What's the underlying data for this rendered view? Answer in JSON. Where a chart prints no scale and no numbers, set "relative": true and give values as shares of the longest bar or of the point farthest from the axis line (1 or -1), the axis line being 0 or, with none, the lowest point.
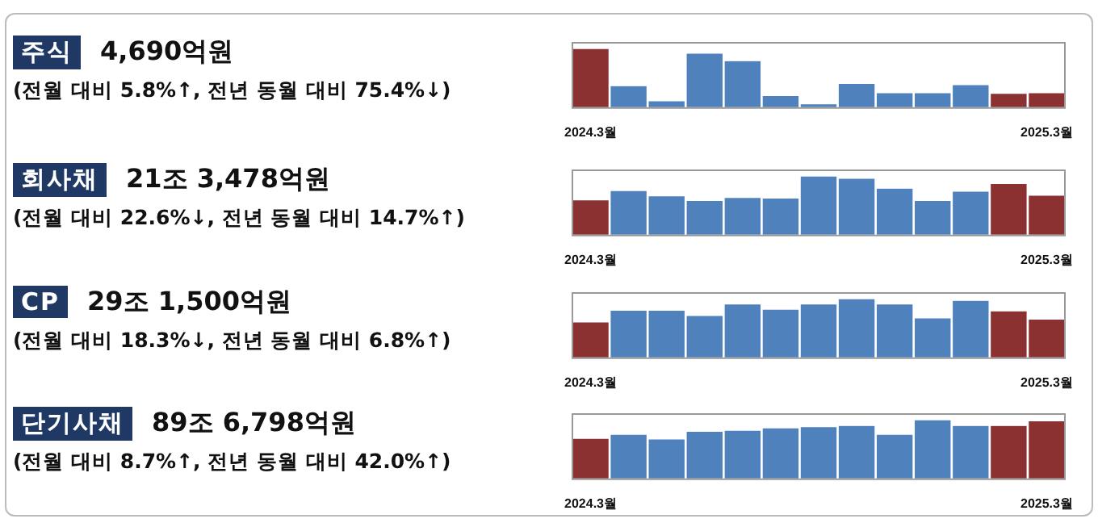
{
  "chart_data": [
    {
      "type": "bar",
      "annotations": [
        "주식",
        "4,690억원",
        "(전월 대비 5.8%↑, 전년 동월 대비 75.4%↓)"
      ],
      "relative": true,
      "categories": [
        "2024.3월",
        null,
        null,
        null,
        null,
        null,
        null,
        null,
        null,
        null,
        null,
        null,
        "2025.3월"
      ],
      "values": [
        1,
        0.36,
        0.1,
        0.92,
        0.79,
        0.19,
        0.05,
        0.4,
        0.24,
        0.24,
        0.38,
        0.23,
        0.24
      ],
      "colors": [
        "#8b3132",
        "#4f81bd",
        "#4f81bd",
        "#4f81bd",
        "#4f81bd",
        "#4f81bd",
        "#4f81bd",
        "#4f81bd",
        "#4f81bd",
        "#4f81bd",
        "#4f81bd",
        "#8b3132",
        "#8b3132"
      ]
    },
    {
      "type": "bar",
      "annotations": [
        "회사채",
        "21조 3,478억원",
        "(전월 대비 22.6%↓, 전년 동월 대비 14.7%↑)"
      ],
      "relative": true,
      "categories": [
        "2024.3월",
        null,
        null,
        null,
        null,
        null,
        null,
        null,
        null,
        null,
        null,
        null,
        "2025.3월"
      ],
      "values": [
        0.59,
        0.75,
        0.66,
        0.58,
        0.63,
        0.62,
        1,
        0.96,
        0.79,
        0.58,
        0.74,
        0.87,
        0.67
      ],
      "colors": [
        "#8b3132",
        "#4f81bd",
        "#4f81bd",
        "#4f81bd",
        "#4f81bd",
        "#4f81bd",
        "#4f81bd",
        "#4f81bd",
        "#4f81bd",
        "#4f81bd",
        "#4f81bd",
        "#8b3132",
        "#8b3132"
      ]
    },
    {
      "type": "bar",
      "annotations": [
        "CP",
        "29조 1,500억원",
        "(전월 대비 18.3%↓, 전년 동월 대비 6.8%↑)"
      ],
      "relative": true,
      "categories": [
        "2024.3월",
        null,
        null,
        null,
        null,
        null,
        null,
        null,
        null,
        null,
        null,
        null,
        "2025.3월"
      ],
      "values": [
        0.6,
        0.8,
        0.8,
        0.71,
        0.91,
        0.82,
        0.91,
        1,
        0.91,
        0.67,
        0.97,
        0.79,
        0.65
      ],
      "colors": [
        "#8b3132",
        "#4f81bd",
        "#4f81bd",
        "#4f81bd",
        "#4f81bd",
        "#4f81bd",
        "#4f81bd",
        "#4f81bd",
        "#4f81bd",
        "#4f81bd",
        "#4f81bd",
        "#8b3132",
        "#8b3132"
      ]
    },
    {
      "type": "bar",
      "annotations": [
        "단기사채",
        "89조 6,798억원",
        "(전월 대비 8.7%↑, 전년 동월 대비 42.0%↑)"
      ],
      "relative": true,
      "categories": [
        "2024.3월",
        null,
        null,
        null,
        null,
        null,
        null,
        null,
        null,
        null,
        null,
        null,
        "2025.3월"
      ],
      "values": [
        0.68,
        0.75,
        0.67,
        0.8,
        0.82,
        0.86,
        0.88,
        0.9,
        0.75,
        1,
        0.9,
        0.9,
        0.98
      ],
      "colors": [
        "#8b3132",
        "#4f81bd",
        "#4f81bd",
        "#4f81bd",
        "#4f81bd",
        "#4f81bd",
        "#4f81bd",
        "#4f81bd",
        "#4f81bd",
        "#4f81bd",
        "#4f81bd",
        "#8b3132",
        "#8b3132"
      ]
    }
  ]
}
